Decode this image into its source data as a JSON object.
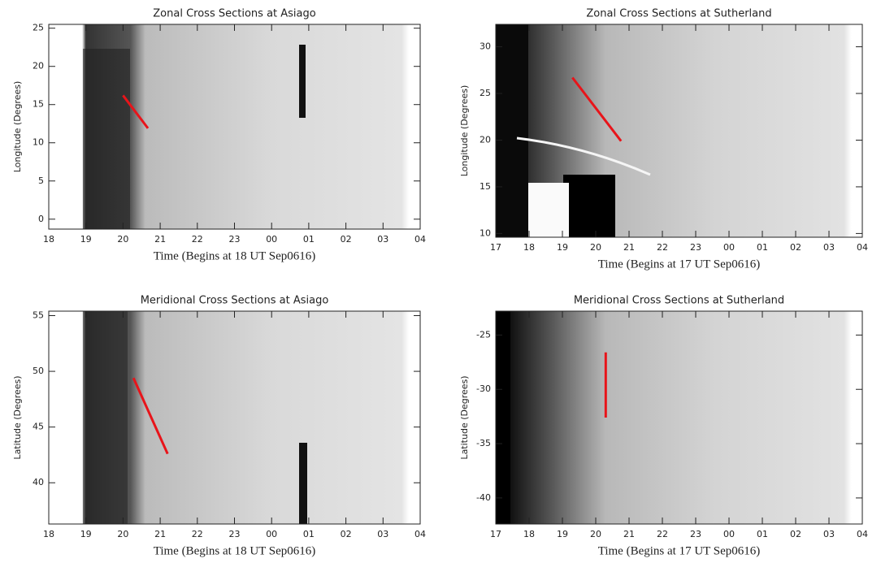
{
  "chart_data": [
    {
      "type": "keogram",
      "title": "Zonal Cross Sections at Asiago",
      "xlabel": "Time (Begins at 18 UT Sep0616)",
      "ylabel": "Longitude (Degrees)",
      "xlim": [
        18,
        28
      ],
      "xticks": [
        18,
        19,
        20,
        21,
        22,
        23,
        {
          "value": 24,
          "label": "00"
        },
        {
          "value": 25,
          "label": "01"
        },
        {
          "value": 26,
          "label": "02"
        },
        {
          "value": 27,
          "label": "03"
        },
        {
          "value": 28,
          "label": "04"
        }
      ],
      "ylim": [
        -1.3,
        25.5
      ],
      "yticks": [
        0,
        5,
        10,
        15,
        20,
        25
      ],
      "lines": [
        {
          "color": "#e8141a",
          "x": [
            20.0,
            20.67
          ],
          "y": [
            16.2,
            11.9
          ]
        }
      ]
    },
    {
      "type": "keogram",
      "title": "Zonal Cross Sections at Sutherland",
      "xlabel": "Time (Begins at 17 UT Sep0616)",
      "ylabel": "Longitude (Degrees)",
      "xlim": [
        17,
        28
      ],
      "xticks": [
        17,
        18,
        19,
        20,
        21,
        22,
        23,
        {
          "value": 24,
          "label": "00"
        },
        {
          "value": 25,
          "label": "01"
        },
        {
          "value": 26,
          "label": "02"
        },
        {
          "value": 27,
          "label": "03"
        },
        {
          "value": 28,
          "label": "04"
        }
      ],
      "ylim": [
        9.6,
        32.4
      ],
      "yticks": [
        10,
        15,
        20,
        25,
        30
      ],
      "lines": [
        {
          "color": "#e8141a",
          "x": [
            19.3,
            20.76
          ],
          "y": [
            26.7,
            19.9
          ]
        }
      ]
    },
    {
      "type": "keogram",
      "title": "Meridional Cross Sections at Asiago",
      "xlabel": "Time (Begins at 18 UT Sep0616)",
      "ylabel": "Latitude (Degrees)",
      "xlim": [
        18,
        28
      ],
      "xticks": [
        18,
        19,
        20,
        21,
        22,
        23,
        {
          "value": 24,
          "label": "00"
        },
        {
          "value": 25,
          "label": "01"
        },
        {
          "value": 26,
          "label": "02"
        },
        {
          "value": 27,
          "label": "03"
        },
        {
          "value": 28,
          "label": "04"
        }
      ],
      "ylim": [
        36.3,
        55.4
      ],
      "yticks": [
        40,
        45,
        50,
        55
      ],
      "lines": [
        {
          "color": "#e8141a",
          "x": [
            20.28,
            21.2
          ],
          "y": [
            49.4,
            42.6
          ]
        }
      ]
    },
    {
      "type": "keogram",
      "title": "Meridional Cross Sections at Sutherland",
      "xlabel": "Time (Begins at 17 UT Sep0616)",
      "ylabel": "Latitude (Degrees)",
      "xlim": [
        17,
        28
      ],
      "xticks": [
        17,
        18,
        19,
        20,
        21,
        22,
        23,
        {
          "value": 24,
          "label": "00"
        },
        {
          "value": 25,
          "label": "01"
        },
        {
          "value": 26,
          "label": "02"
        },
        {
          "value": 27,
          "label": "03"
        },
        {
          "value": 28,
          "label": "04"
        }
      ],
      "ylim": [
        -42.4,
        -22.8
      ],
      "yticks": [
        -40,
        -35,
        -30,
        -25
      ],
      "lines": [
        {
          "color": "#e8141a",
          "x": [
            20.3,
            20.3
          ],
          "y": [
            -26.6,
            -32.6
          ]
        }
      ]
    }
  ]
}
